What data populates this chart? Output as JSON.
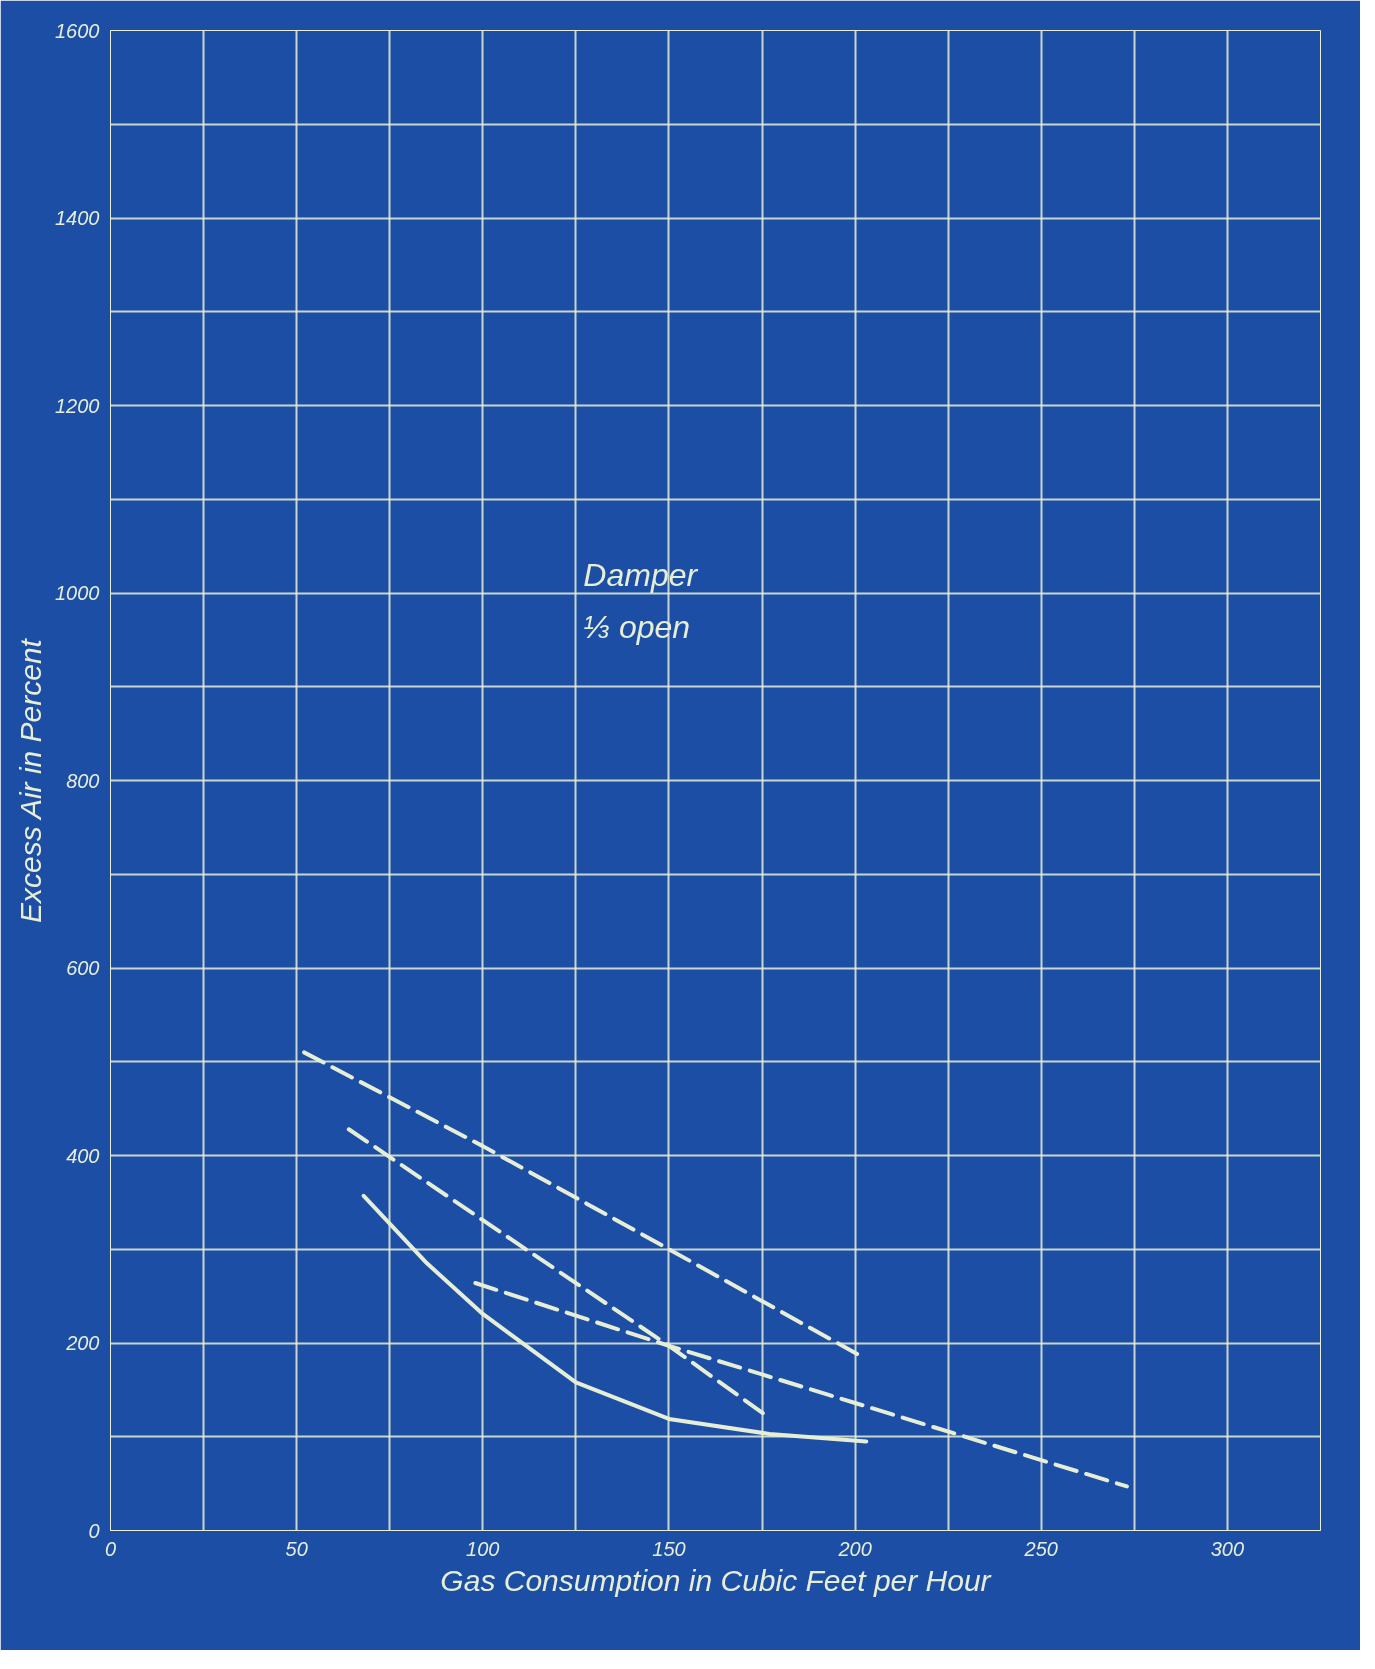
{
  "chart_data": {
    "type": "line",
    "xlabel": "Gas Consumption in Cubic Feet per Hour",
    "ylabel": "Excess Air in Percent",
    "annotations": [
      "Damper",
      "⅓ open"
    ],
    "xlim": [
      0,
      325
    ],
    "ylim": [
      0,
      1600
    ],
    "xticks": [
      0,
      {
        "value": 25,
        "label": null
      },
      50,
      {
        "value": 75,
        "label": null
      },
      100,
      {
        "value": 125,
        "label": null
      },
      150,
      {
        "value": 175,
        "label": null
      },
      200,
      {
        "value": 225,
        "label": null
      },
      250,
      {
        "value": 275,
        "label": null
      },
      300,
      {
        "value": 325,
        "label": null
      }
    ],
    "yticks": [
      0,
      {
        "value": 100,
        "label": null
      },
      200,
      {
        "value": 300,
        "label": null
      },
      400,
      {
        "value": 500,
        "label": null
      },
      600,
      {
        "value": 700,
        "label": null
      },
      800,
      {
        "value": 900,
        "label": null
      },
      1000,
      {
        "value": 1100,
        "label": null
      },
      1200,
      {
        "value": 1300,
        "label": null
      },
      1400,
      {
        "value": 1500,
        "label": null
      },
      1600
    ],
    "grid": true,
    "marker": "none",
    "series": [
      {
        "color": "#e6efd6",
        "line_style": "dashed",
        "x": [
          52,
          100,
          150,
          202
        ],
        "values": [
          510,
          410,
          300,
          185
        ]
      },
      {
        "color": "#e6efd6",
        "line_style": "dashed",
        "x": [
          64,
          100,
          150,
          176
        ],
        "values": [
          428,
          331,
          197,
          123
        ]
      },
      {
        "color": "#e6efd6",
        "line_style": "dashed",
        "x": [
          98,
          150,
          200,
          273
        ],
        "values": [
          264,
          197,
          136,
          47
        ]
      },
      {
        "color": "#e6efd6",
        "line_style": "solid",
        "x": [
          68,
          85,
          100,
          125,
          150,
          177,
          203
        ],
        "values": [
          357,
          285,
          231,
          158,
          119,
          103,
          95
        ]
      }
    ]
  }
}
